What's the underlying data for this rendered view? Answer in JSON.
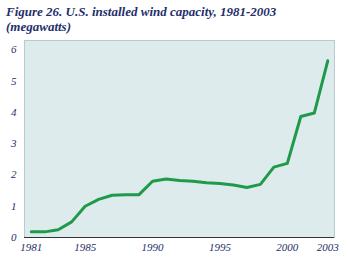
{
  "chart_data": {
    "type": "line",
    "title": [
      "Figure 26. U.S. installed wind capacity, 1981-2003",
      "(megawatts)"
    ],
    "x": [
      1981,
      1982,
      1983,
      1984,
      1985,
      1986,
      1987,
      1988,
      1989,
      1990,
      1991,
      1992,
      1993,
      1994,
      1995,
      1996,
      1997,
      1998,
      1999,
      2000,
      2001,
      2002,
      2003
    ],
    "values": [
      0.18,
      0.18,
      0.25,
      0.5,
      1.0,
      1.22,
      1.35,
      1.37,
      1.37,
      1.8,
      1.87,
      1.82,
      1.8,
      1.75,
      1.73,
      1.68,
      1.6,
      1.7,
      2.25,
      2.37,
      3.87,
      3.98,
      5.65
    ],
    "color": "#1e9a4a",
    "xlim": [
      1980.5,
      2003.5
    ],
    "xticks": [
      1981,
      1985,
      1990,
      1995,
      2000,
      2003
    ],
    "ylim": [
      0,
      6.3
    ],
    "yticks": [
      0,
      1,
      2,
      3,
      4,
      5,
      6
    ],
    "grid": false
  }
}
